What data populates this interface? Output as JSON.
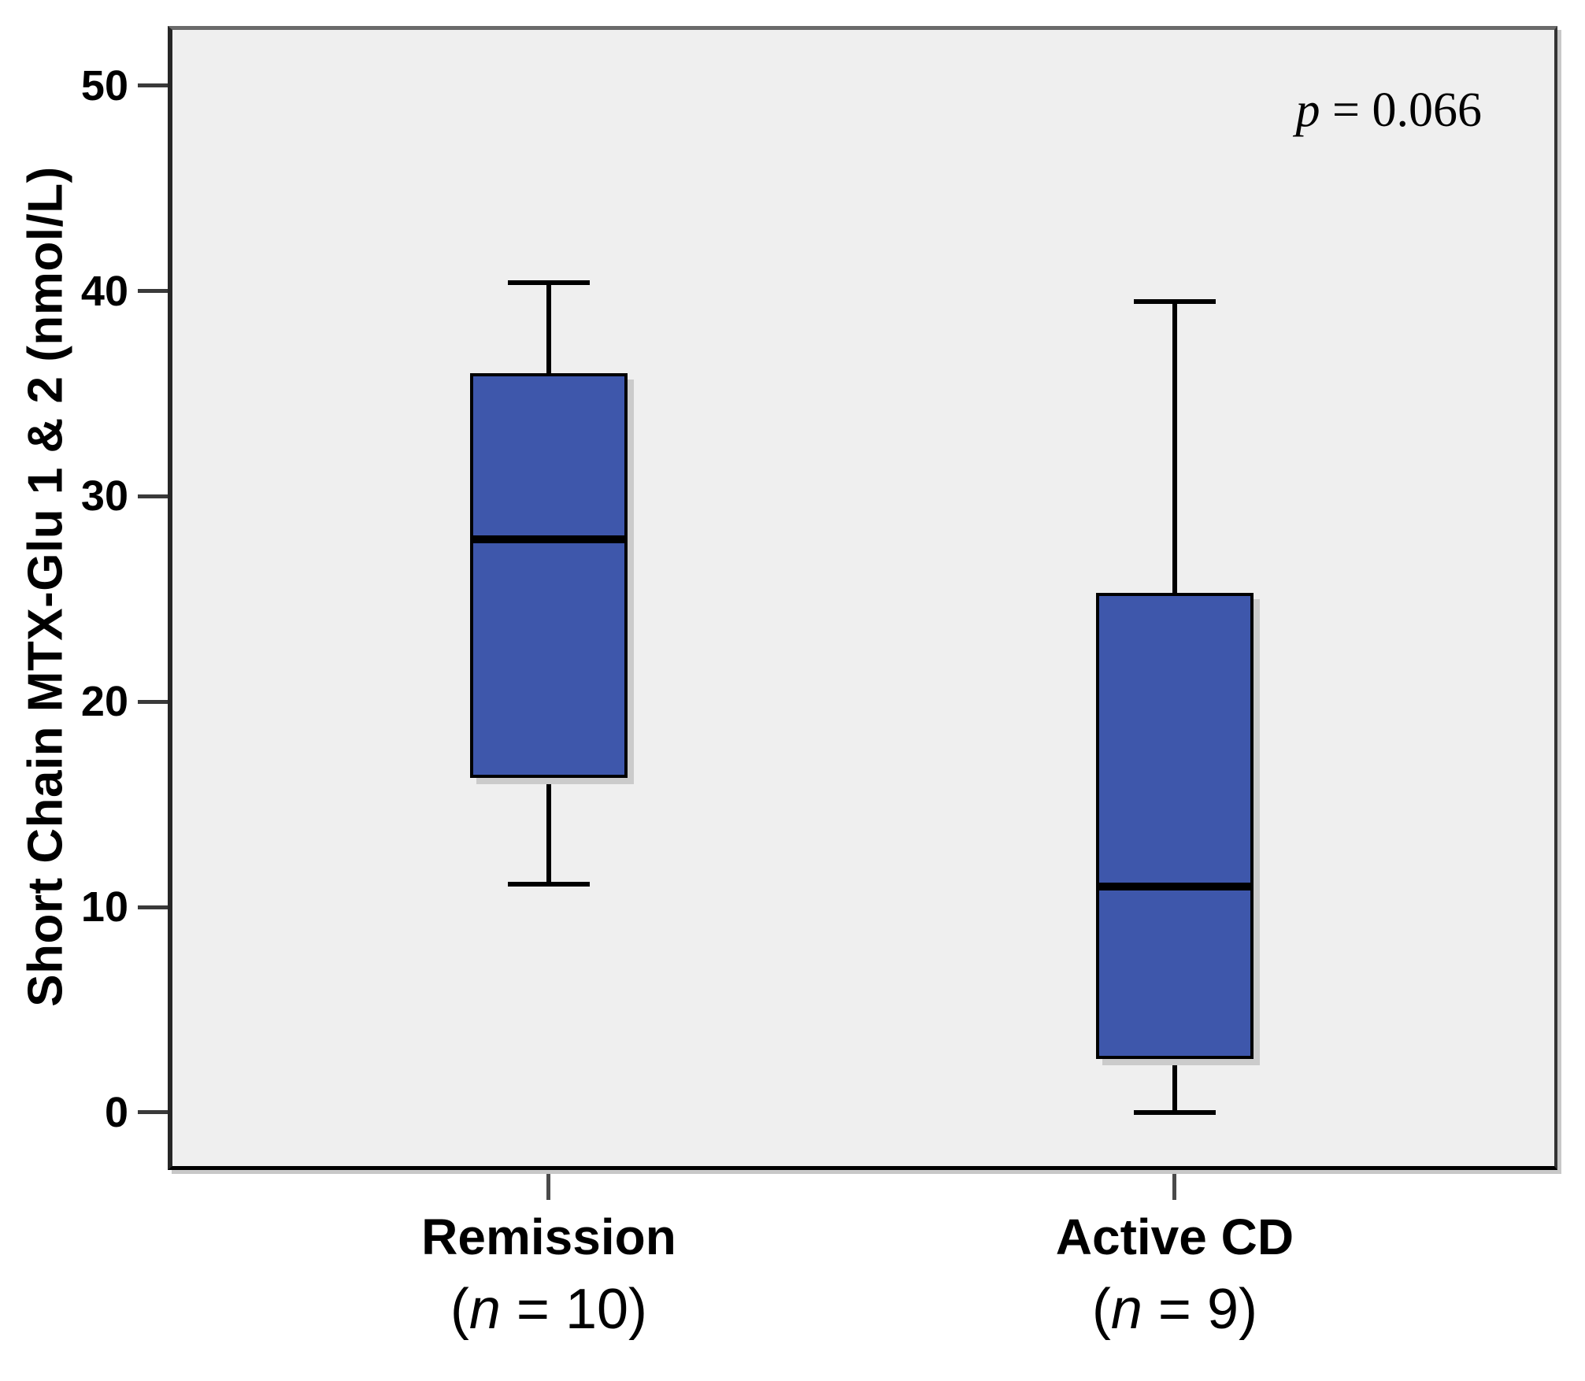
{
  "figure": {
    "background": "#ffffff",
    "plot_background": "#efefef"
  },
  "chart_data": {
    "type": "boxplot",
    "title": "",
    "ylabel": "Short Chain MTX-Glu 1 & 2 (nmol/L)",
    "xlabel": "",
    "ylim": [
      -2.8,
      52.9
    ],
    "yticks": [
      0,
      10,
      20,
      30,
      40,
      50
    ],
    "grid": false,
    "legend": "none",
    "annotation": {
      "var": "p",
      "rest": " = 0.066",
      "position": "top-right"
    },
    "box_fill": "#3E57AB",
    "box_border": "#000000",
    "categories": [
      "Remission",
      "Active CD"
    ],
    "sublabels": [
      {
        "open": "(",
        "var": "n",
        "rest": " = 10)"
      },
      {
        "open": "(",
        "var": "n",
        "rest": " = 9)"
      }
    ],
    "series": [
      {
        "name": "Remission",
        "whisker_low": 11.1,
        "q1": 16.3,
        "median": 27.9,
        "q3": 36.0,
        "whisker_high": 40.4
      },
      {
        "name": "Active CD",
        "whisker_low": 0.0,
        "q1": 2.6,
        "median": 11.0,
        "q3": 25.3,
        "whisker_high": 39.5
      }
    ]
  }
}
